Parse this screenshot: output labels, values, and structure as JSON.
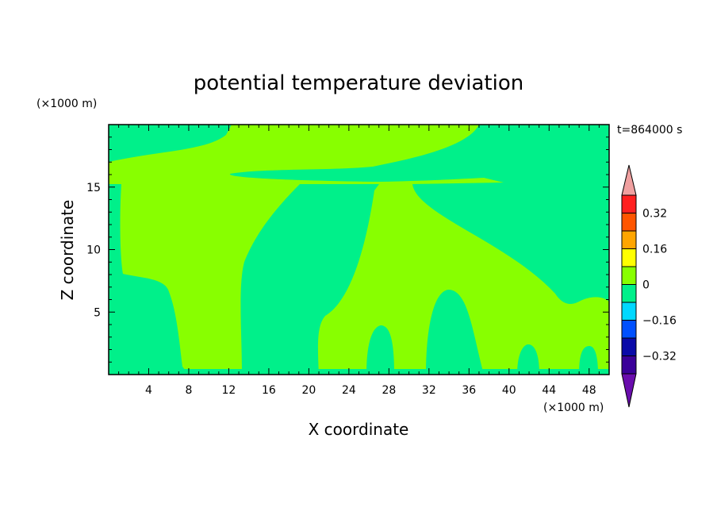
{
  "chart_data": {
    "type": "heatmap",
    "title": "potential temperature deviation",
    "xlabel": "X coordinate",
    "ylabel": "Z coordinate",
    "x_unit_label": "(×1000 m)",
    "y_unit_label": "(×1000 m)",
    "time_label": "t=864000 s",
    "xlim": [
      0,
      50
    ],
    "ylim": [
      0,
      20
    ],
    "x_ticks": [
      4,
      8,
      12,
      16,
      20,
      24,
      28,
      32,
      36,
      40,
      44,
      48
    ],
    "y_ticks": [
      5,
      10,
      15
    ],
    "colorbar": {
      "levels": [
        -0.4,
        -0.32,
        -0.24,
        -0.16,
        -0.08,
        0,
        0.08,
        0.16,
        0.24,
        0.32,
        0.4
      ],
      "tick_labels": [
        "0.32",
        "0.16",
        "0",
        "−0.16",
        "−0.32"
      ],
      "tick_values": [
        0.32,
        0.16,
        0,
        -0.16,
        -0.32
      ],
      "colors": [
        "#6a0dad",
        "#3a0099",
        "#0a0aa8",
        "#0050ff",
        "#00d8ff",
        "#00f08a",
        "#88ff00",
        "#ffff00",
        "#ffa500",
        "#ff5500",
        "#ff2020",
        "#f0a0a0"
      ],
      "background_color": "#88ff00",
      "region_color": "#00f08a"
    }
  }
}
